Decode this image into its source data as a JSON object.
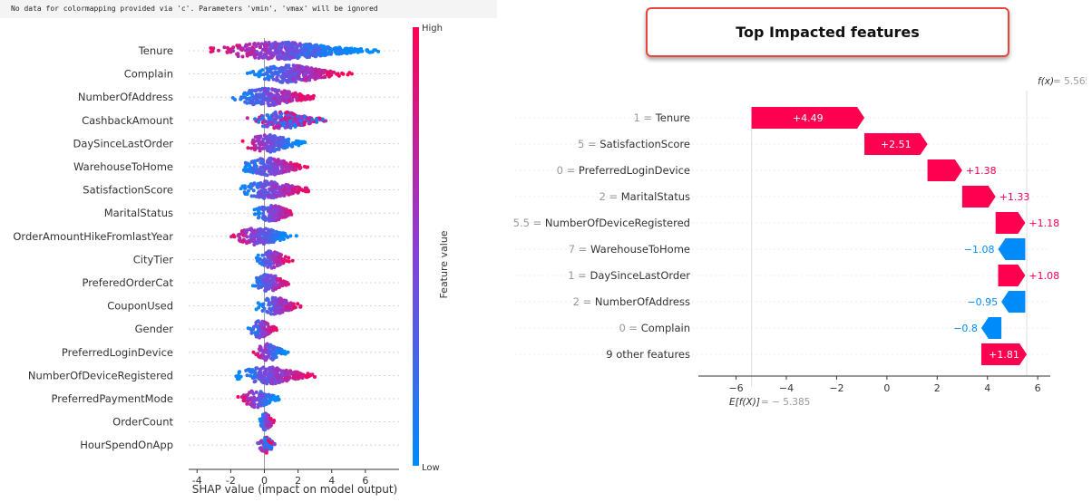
{
  "warning_text": "No data for colormapping provided via 'c'. Parameters 'vmin', 'vmax' will be ignored",
  "banner_title": "Top Impacted features",
  "colors": {
    "high": "#ff0052",
    "low": "#008bfb",
    "mid": "#8a3fd6",
    "neg": "#008bfb",
    "pos": "#ff0051"
  },
  "chart_data": [
    {
      "type": "scatter",
      "subtype": "shap-beeswarm",
      "xlabel": "SHAP value (impact on model output)",
      "xlim": [
        -4.5,
        8
      ],
      "xticks": [
        -4,
        -2,
        0,
        2,
        4,
        6
      ],
      "colorbar": {
        "label": "Feature value",
        "high": "High",
        "low": "Low"
      },
      "features": [
        {
          "name": "Tenure",
          "min": -4.0,
          "max": 7.5,
          "high_side": "neg"
        },
        {
          "name": "Complain",
          "min": -1.5,
          "max": 5.5,
          "high_side": "pos"
        },
        {
          "name": "NumberOfAddress",
          "min": -2.5,
          "max": 3.7,
          "high_side": "pos"
        },
        {
          "name": "CashbackAmount",
          "min": -1.4,
          "max": 4.2,
          "high_side": "mix"
        },
        {
          "name": "DaySinceLastOrder",
          "min": -1.7,
          "max": 2.9,
          "high_side": "neg"
        },
        {
          "name": "WarehouseToHome",
          "min": -2.0,
          "max": 3.1,
          "high_side": "pos"
        },
        {
          "name": "SatisfactionScore",
          "min": -2.1,
          "max": 3.3,
          "high_side": "pos"
        },
        {
          "name": "MaritalStatus",
          "min": -1.0,
          "max": 2.2,
          "high_side": "pos"
        },
        {
          "name": "OrderAmountHikeFromlastYear",
          "min": -2.3,
          "max": 2.3,
          "high_side": "neg"
        },
        {
          "name": "CityTier",
          "min": -0.8,
          "max": 1.9,
          "high_side": "pos"
        },
        {
          "name": "PreferedOrderCat",
          "min": -1.0,
          "max": 1.9,
          "high_side": "pos"
        },
        {
          "name": "CouponUsed",
          "min": -0.9,
          "max": 2.6,
          "high_side": "pos"
        },
        {
          "name": "Gender",
          "min": -1.2,
          "max": 1.0,
          "high_side": "pos"
        },
        {
          "name": "PreferredLoginDevice",
          "min": -0.8,
          "max": 1.6,
          "high_side": "neg"
        },
        {
          "name": "NumberOfDeviceRegistered",
          "min": -2.3,
          "max": 3.5,
          "high_side": "pos"
        },
        {
          "name": "PreferredPaymentMode",
          "min": -1.7,
          "max": 1.2,
          "high_side": "neg"
        },
        {
          "name": "OrderCount",
          "min": -0.4,
          "max": 0.7,
          "high_side": "pos"
        },
        {
          "name": "HourSpendOnApp",
          "min": -0.5,
          "max": 0.8,
          "high_side": "mix"
        }
      ]
    },
    {
      "type": "bar",
      "subtype": "shap-waterfall",
      "fx_label": "f(x)",
      "fx_value": "= 5.565",
      "base_label": "E[f(X)]",
      "base_value": "= − 5.385",
      "base": -5.385,
      "xlim": [
        -7.5,
        6.5
      ],
      "xticks": [
        "−6",
        "−4",
        "−2",
        "0",
        "2",
        "4",
        "6"
      ],
      "xtick_values": [
        -6,
        -4,
        -2,
        0,
        2,
        4,
        6
      ],
      "items": [
        {
          "value_label": "1",
          "feature": "Tenure",
          "shap": 4.49,
          "text": "+4.49"
        },
        {
          "value_label": "5",
          "feature": "SatisfactionScore",
          "shap": 2.51,
          "text": "+2.51"
        },
        {
          "value_label": "0",
          "feature": "PreferredLoginDevice",
          "shap": 1.38,
          "text": "+1.38"
        },
        {
          "value_label": "2",
          "feature": "MaritalStatus",
          "shap": 1.33,
          "text": "+1.33"
        },
        {
          "value_label": "5.5",
          "feature": "NumberOfDeviceRegistered",
          "shap": 1.18,
          "text": "+1.18"
        },
        {
          "value_label": "7",
          "feature": "WarehouseToHome",
          "shap": -1.08,
          "text": "−1.08"
        },
        {
          "value_label": "1",
          "feature": "DaySinceLastOrder",
          "shap": 1.08,
          "text": "+1.08"
        },
        {
          "value_label": "2",
          "feature": "NumberOfAddress",
          "shap": -0.95,
          "text": "−0.95"
        },
        {
          "value_label": "0",
          "feature": "Complain",
          "shap": -0.8,
          "text": "−0.8"
        },
        {
          "value_label": "",
          "feature": "9 other features",
          "shap": 1.81,
          "text": "+1.81"
        }
      ]
    }
  ]
}
